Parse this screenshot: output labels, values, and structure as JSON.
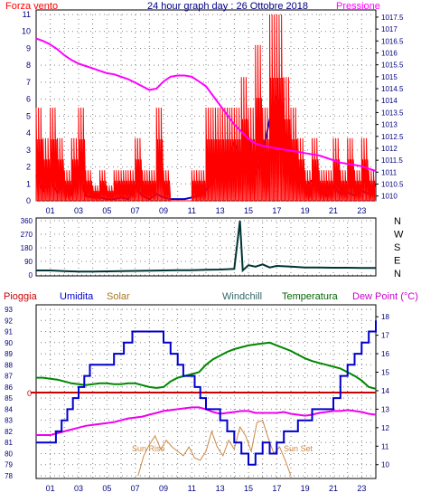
{
  "colors": {
    "wind": "#ff0000",
    "gust_blue": "#0000cc",
    "pressure": "#ff00ff",
    "direction": "#003333",
    "rain": "#cc0000",
    "humidity": "#0000cc",
    "solar": "#cc8844",
    "windchill": "#336666",
    "temperature": "#008800",
    "dewpoint": "#ee00ee",
    "grid": "#808080",
    "axis_text": "#000080"
  },
  "chart_data": [
    {
      "type": "line",
      "title": "24 hour graph day : 26 Ottobre 2018",
      "left_label": "Forza vento",
      "right_label": "Pressione",
      "x_ticks": [
        "01",
        "03",
        "05",
        "07",
        "09",
        "11",
        "13",
        "15",
        "17",
        "19",
        "21",
        "23"
      ],
      "left_ticks": [
        "0",
        "1",
        "2",
        "3",
        "4",
        "5",
        "6",
        "7",
        "8",
        "9",
        "10",
        "11"
      ],
      "right_ticks": [
        "1010",
        "1010.5",
        "1011",
        "1011.5",
        "1012",
        "1012.5",
        "1013",
        "1013.5",
        "1014",
        "1014.5",
        "1015",
        "1015.5",
        "1016",
        "1016.5",
        "1017",
        "1017.5"
      ],
      "left_range": [
        0,
        11
      ],
      "right_range": [
        1009.8,
        1017.8
      ],
      "x_range": [
        0,
        24
      ],
      "grid": true,
      "series": [
        {
          "key": "pressure",
          "x": [
            0,
            0.5,
            1,
            1.5,
            2,
            2.5,
            3,
            3.5,
            4,
            4.5,
            5,
            5.5,
            6,
            6.5,
            7,
            7.5,
            8,
            8.5,
            9,
            9.5,
            10,
            10.5,
            11,
            11.5,
            12,
            12.5,
            13,
            13.5,
            14,
            14.5,
            15,
            15.5,
            16,
            16.5,
            17,
            17.5,
            18,
            18.5,
            19,
            19.5,
            20,
            20.5,
            21,
            21.5,
            22,
            22.5,
            23,
            23.5,
            24
          ],
          "values": [
            1016.6,
            1016.5,
            1016.35,
            1016.15,
            1015.9,
            1015.7,
            1015.55,
            1015.45,
            1015.35,
            1015.25,
            1015.15,
            1015.1,
            1015,
            1014.9,
            1014.75,
            1014.6,
            1014.45,
            1014.5,
            1014.8,
            1015,
            1015.05,
            1015.05,
            1015,
            1014.8,
            1014.6,
            1014.2,
            1013.8,
            1013.4,
            1013,
            1012.7,
            1012.4,
            1012.2,
            1012.1,
            1012.05,
            1012,
            1011.95,
            1011.9,
            1011.85,
            1011.8,
            1011.75,
            1011.7,
            1011.6,
            1011.5,
            1011.4,
            1011.35,
            1011.3,
            1011.25,
            1011.15,
            1011.05
          ]
        },
        {
          "key": "gust_blue",
          "x": [
            0,
            0.5,
            1,
            1.5,
            2,
            2.5,
            3,
            3.5,
            4,
            4.5,
            5,
            5.5,
            6,
            6.5,
            7,
            7.5,
            8,
            8.5,
            9,
            9.5,
            10,
            10.5,
            11,
            11.5,
            12,
            12.5,
            13,
            13.5,
            14,
            14.5,
            15,
            15.5,
            16,
            16.5,
            17,
            17.5,
            18,
            18.5,
            19,
            19.5,
            20,
            20.5,
            21,
            21.5,
            22,
            22.5,
            23,
            23.5,
            24
          ],
          "values": [
            1.5,
            0.6,
            1.2,
            0.5,
            1,
            0.4,
            2,
            0.3,
            0.2,
            0.2,
            0.1,
            0.1,
            0.2,
            0.1,
            0.8,
            0.3,
            0.1,
            0.4,
            0.2,
            0.1,
            0.1,
            0.1,
            0.2,
            0.3,
            0.6,
            1.2,
            1.8,
            2.6,
            3.4,
            2.4,
            3.8,
            1.6,
            2.8,
            4.8,
            6.2,
            4.2,
            2.6,
            1.4,
            0.8,
            1.2,
            0.5,
            0.3,
            0.8,
            0.4,
            0.5,
            0.3,
            0.6,
            0.4,
            1
          ]
        },
        {
          "key": "wind",
          "x": [
            0,
            0.5,
            1,
            1.5,
            2,
            2.5,
            3,
            3.5,
            4,
            4.5,
            5,
            5.5,
            6,
            6.5,
            7,
            7.5,
            8,
            8.5,
            9,
            9.5,
            10,
            10.5,
            11,
            11.5,
            12,
            12.5,
            13,
            13.5,
            14,
            14.5,
            15,
            15.5,
            16,
            16.5,
            17,
            17.5,
            18,
            18.5,
            19,
            19.5,
            20,
            20.5,
            21,
            21.5,
            22,
            22.5,
            23,
            23.5,
            24
          ],
          "values": [
            5.5,
            3.7,
            5.5,
            3.7,
            1.8,
            3.7,
            5.5,
            1.8,
            0.9,
            1.8,
            0.9,
            1.8,
            1.8,
            1.8,
            3.7,
            1.8,
            1.8,
            5.5,
            1.8,
            0,
            0,
            0,
            1.8,
            1.8,
            5.5,
            5.5,
            5.5,
            5.5,
            5.5,
            7.3,
            5.5,
            9.2,
            5.5,
            11,
            11,
            7.3,
            5.5,
            3.7,
            1.8,
            3.7,
            1.8,
            1.8,
            3.7,
            1.8,
            3.7,
            1.8,
            3.7,
            1.8,
            1.8
          ]
        }
      ]
    },
    {
      "type": "line",
      "title": "",
      "left_ticks": [
        "0",
        "90",
        "180",
        "270",
        "360"
      ],
      "right_labels": [
        "N",
        "W",
        "S",
        "E",
        "N"
      ],
      "left_range": [
        0,
        360
      ],
      "x_range": [
        0,
        24
      ],
      "grid": true,
      "series": [
        {
          "key": "direction",
          "x": [
            0,
            1,
            2,
            3,
            4,
            5,
            6,
            7,
            8,
            9,
            10,
            11,
            12,
            13,
            14,
            14.4,
            14.6,
            15,
            15.5,
            16,
            16.5,
            17,
            18,
            19,
            20,
            21,
            22,
            23,
            24
          ],
          "values": [
            30,
            30,
            26,
            22,
            22,
            24,
            26,
            27,
            28,
            30,
            32,
            32,
            34,
            36,
            40,
            360,
            30,
            65,
            55,
            70,
            50,
            60,
            55,
            50,
            50,
            48,
            48,
            47,
            46
          ]
        }
      ]
    },
    {
      "type": "line",
      "title": "",
      "legend": [
        "Pioggia",
        "Umidita",
        "Solar",
        "Windchill",
        "Temperatura",
        "Dew Point (°C)"
      ],
      "left_ticks": [
        "78",
        "79",
        "80",
        "81",
        "82",
        "83",
        "84",
        "85",
        "86",
        "87",
        "88",
        "89",
        "90",
        "91",
        "92",
        "93"
      ],
      "left_range": [
        78,
        93
      ],
      "right_ticks": [
        "10",
        "11",
        "12",
        "13",
        "14",
        "15",
        "16",
        "17",
        "18"
      ],
      "right_range": [
        9.4,
        18.4
      ],
      "rain_axis_label": "0",
      "annotations": [
        "Sun Rise",
        "Sun Set"
      ],
      "x_range": [
        0,
        24
      ],
      "grid": true,
      "series": [
        {
          "key": "temperature",
          "x": [
            0,
            0.5,
            1,
            1.5,
            2,
            2.5,
            3,
            3.5,
            4,
            4.5,
            5,
            5.5,
            6,
            6.5,
            7,
            7.5,
            8,
            8.5,
            9,
            9.5,
            10,
            10.5,
            11,
            11.5,
            12,
            12.5,
            13,
            13.5,
            14,
            14.5,
            15,
            15.5,
            16,
            16.5,
            17,
            17.5,
            18,
            18.5,
            19,
            19.5,
            20,
            20.5,
            21,
            21.5,
            22,
            22.5,
            23,
            23.5,
            24
          ],
          "values": [
            14.7,
            14.7,
            14.65,
            14.6,
            14.5,
            14.4,
            14.35,
            14.3,
            14.35,
            14.4,
            14.4,
            14.35,
            14.35,
            14.4,
            14.4,
            14.3,
            14.2,
            14.15,
            14.2,
            14.5,
            14.7,
            14.8,
            14.9,
            15,
            15.4,
            15.7,
            15.9,
            16.1,
            16.25,
            16.35,
            16.45,
            16.5,
            16.55,
            16.6,
            16.45,
            16.3,
            16.15,
            15.95,
            15.75,
            15.6,
            15.5,
            15.4,
            15.3,
            15.2,
            15,
            14.8,
            14.55,
            14.2,
            14.1
          ]
        },
        {
          "key": "dewpoint",
          "x": [
            0,
            0.5,
            1,
            1.5,
            2,
            2.5,
            3,
            3.5,
            4,
            4.5,
            5,
            5.5,
            6,
            6.5,
            7,
            7.5,
            8,
            8.5,
            9,
            9.5,
            10,
            10.5,
            11,
            11.5,
            12,
            12.5,
            13,
            13.5,
            14,
            14.5,
            15,
            15.5,
            16,
            16.5,
            17,
            17.5,
            18,
            18.5,
            19,
            19.5,
            20,
            20.5,
            21,
            21.5,
            22,
            22.5,
            23,
            23.5,
            24
          ],
          "values": [
            11.6,
            11.6,
            11.6,
            11.7,
            11.8,
            11.9,
            12,
            12.1,
            12.15,
            12.2,
            12.25,
            12.3,
            12.4,
            12.5,
            12.55,
            12.6,
            12.7,
            12.8,
            12.9,
            12.95,
            13,
            13.05,
            13.1,
            13.1,
            13,
            12.85,
            12.75,
            12.8,
            12.85,
            12.9,
            12.9,
            12.8,
            12.8,
            12.8,
            12.8,
            12.85,
            12.75,
            12.7,
            12.65,
            12.7,
            12.8,
            12.85,
            12.9,
            12.9,
            12.95,
            12.9,
            12.85,
            12.75,
            12.7
          ]
        },
        {
          "key": "humidity",
          "step": true,
          "x": [
            0,
            1,
            1.4,
            1.8,
            2.2,
            2.6,
            3,
            3.4,
            3.8,
            4.5,
            5.5,
            6.2,
            6.8,
            7.4,
            8,
            8.5,
            9,
            9.5,
            10,
            10.4,
            10.8,
            11.2,
            11.6,
            12,
            12.5,
            13,
            13.5,
            14,
            14.5,
            15,
            15.5,
            16,
            16.5,
            17,
            17.5,
            18,
            18.5,
            19,
            19.5,
            20,
            20.5,
            21,
            21.5,
            22,
            22.5,
            23,
            23.5,
            24
          ],
          "values": [
            81,
            81,
            82,
            83,
            84,
            85,
            86,
            87,
            88,
            88,
            89,
            90,
            91,
            91,
            91,
            91,
            90,
            89,
            88,
            87,
            87,
            86,
            85,
            84,
            84,
            83,
            82,
            81,
            80,
            79,
            80,
            81,
            80,
            81,
            82,
            82,
            83,
            83,
            84,
            84,
            84,
            85,
            87,
            88,
            89,
            90,
            91,
            92
          ]
        },
        {
          "key": "solar",
          "x": [
            7.2,
            7.6,
            8,
            8.4,
            8.8,
            9.2,
            9.6,
            10,
            10.4,
            10.8,
            11.2,
            11.6,
            12,
            12.4,
            12.8,
            13.2,
            13.6,
            14,
            14.4,
            14.8,
            15.2,
            15.6,
            16,
            16.4,
            16.8,
            17.2,
            17.6,
            18
          ],
          "values": [
            78,
            79.8,
            80.8,
            81.6,
            80.4,
            81.2,
            80.6,
            80.2,
            79.8,
            80.6,
            79.6,
            79.4,
            80.2,
            82,
            80.6,
            79.8,
            81.2,
            80.4,
            82.4,
            81.6,
            80.2,
            82.8,
            83,
            81.4,
            80,
            80.6,
            79.4,
            78
          ]
        }
      ]
    }
  ]
}
